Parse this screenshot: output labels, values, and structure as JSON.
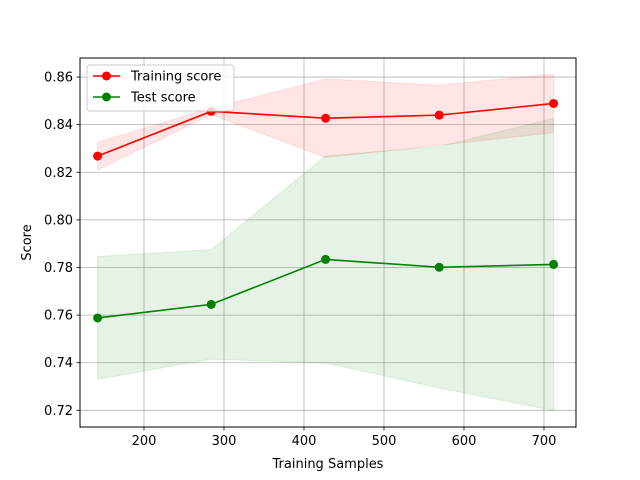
{
  "chart_data": {
    "type": "line",
    "title": "",
    "xlabel": "Training Samples",
    "ylabel": "Score",
    "xlim": [
      120,
      740
    ],
    "ylim": [
      0.713,
      0.868
    ],
    "xticks": [
      200,
      300,
      400,
      500,
      600,
      700
    ],
    "yticks": [
      0.72,
      0.74,
      0.76,
      0.78,
      0.8,
      0.82,
      0.84,
      0.86
    ],
    "xtick_labels": [
      "200",
      "300",
      "400",
      "500",
      "600",
      "700"
    ],
    "ytick_labels": [
      "0.72",
      "0.74",
      "0.76",
      "0.78",
      "0.80",
      "0.82",
      "0.84",
      "0.86"
    ],
    "grid": true,
    "legend_position": "top-left",
    "x": [
      142,
      284,
      427,
      569,
      712
    ],
    "series": [
      {
        "name": "Training score",
        "color": "#ff0000",
        "band_color": "#ff0000",
        "values": [
          0.8268,
          0.8456,
          0.8427,
          0.844,
          0.8489
        ],
        "upper": [
          0.8326,
          0.8469,
          0.8592,
          0.8566,
          0.8612
        ],
        "lower": [
          0.821,
          0.8443,
          0.8262,
          0.8314,
          0.8366
        ]
      },
      {
        "name": "Test score",
        "color": "#008000",
        "band_color": "#008000",
        "values": [
          0.7588,
          0.7645,
          0.7834,
          0.7801,
          0.7813
        ],
        "upper": [
          0.7846,
          0.7875,
          0.8269,
          0.8308,
          0.8427
        ],
        "lower": [
          0.733,
          0.7415,
          0.7399,
          0.7294,
          0.7199
        ]
      }
    ]
  }
}
